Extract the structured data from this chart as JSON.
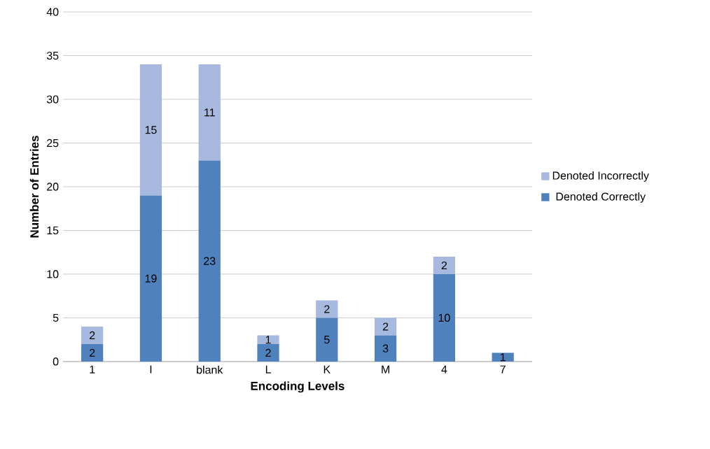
{
  "chart_data": {
    "type": "bar",
    "stacked": true,
    "xlabel": "Encoding Levels",
    "ylabel": "Number of Entries",
    "categories": [
      "1",
      "I",
      "blank",
      "L",
      "K",
      "M",
      "4",
      "7"
    ],
    "series": [
      {
        "name": "Denoted Correctly",
        "color": "#4f81bd",
        "values": [
          2,
          19,
          23,
          2,
          5,
          3,
          10,
          1
        ]
      },
      {
        "name": "Denoted Incorrectly",
        "color": "#a7b9de",
        "values": [
          2,
          15,
          11,
          1,
          2,
          2,
          2,
          null
        ]
      }
    ],
    "ylim": [
      0,
      40
    ],
    "yticks": [
      0,
      5,
      10,
      15,
      20,
      25,
      30,
      35,
      40
    ],
    "grid": "y",
    "legend": "right",
    "data_labels": true
  }
}
